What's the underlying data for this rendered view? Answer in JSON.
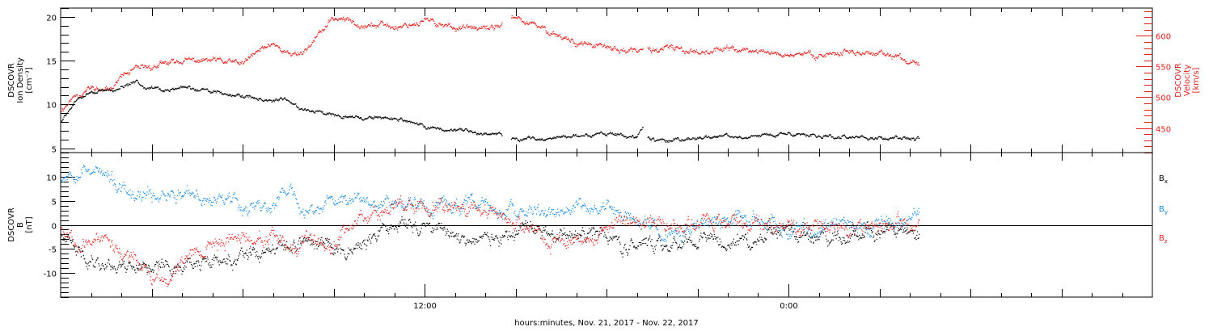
{
  "x_axis": {
    "title": "hours:minutes, Nov. 21, 2017 - Nov. 22, 2017",
    "range_hours": [
      0,
      36
    ],
    "tick_hours": [
      12,
      24
    ],
    "tick_labels": [
      "12:00",
      "0:00"
    ]
  },
  "chart_data": [
    {
      "type": "scatter",
      "panel": "plasma",
      "ylabel_left": [
        "DSCOVR",
        "Ion Density",
        "[cm⁻³]"
      ],
      "ylabel_right": [
        "DSCOVR",
        "Velocity",
        "[km/s]"
      ],
      "ylim_left": [
        4.5,
        21
      ],
      "ylim_right": [
        410,
        645
      ],
      "yticks_left": [
        5,
        10,
        15,
        20
      ],
      "yticks_right": [
        450,
        500,
        550,
        600
      ],
      "data_end_hour": 28.3,
      "gaps": [
        [
          14.55,
          14.85
        ],
        [
          19.2,
          19.35
        ]
      ],
      "series": [
        {
          "label": "Ion Density",
          "axis": "left",
          "color": "#000000",
          "x": [
            0,
            0.5,
            1,
            1.5,
            2,
            2.5,
            3,
            3.5,
            4,
            5,
            6,
            7,
            7.5,
            8,
            9,
            10,
            11,
            12,
            13,
            14,
            14.55,
            14.85,
            16,
            17,
            18,
            19,
            19.2,
            19.35,
            20,
            21,
            22,
            23,
            24,
            25,
            26,
            27,
            28,
            28.3
          ],
          "y": [
            8,
            10.5,
            11.5,
            11.5,
            12,
            12.5,
            12,
            11.5,
            12,
            11.5,
            11,
            10.5,
            10.5,
            9.5,
            9,
            8.5,
            8.5,
            7.5,
            7,
            6.8,
            6.7,
            6.2,
            6.1,
            6.5,
            6.7,
            6.2,
            7.5,
            6.2,
            5.8,
            6.2,
            6.4,
            6.5,
            6.6,
            6.5,
            6.3,
            6.3,
            6.2,
            6.2
          ]
        },
        {
          "label": "Velocity",
          "axis": "right",
          "color": "#e0201b",
          "x": [
            0,
            0.5,
            1,
            1.5,
            2,
            2.5,
            3,
            3.5,
            4,
            5,
            6,
            6.5,
            7,
            7.5,
            8,
            9,
            9.5,
            10,
            11,
            12,
            13,
            14,
            14.55,
            14.85,
            16,
            17,
            18,
            19,
            20,
            21,
            22,
            23,
            24,
            25,
            26,
            27,
            28,
            28.3
          ],
          "y": [
            480,
            505,
            515,
            510,
            535,
            545,
            550,
            555,
            560,
            560,
            555,
            575,
            590,
            570,
            575,
            630,
            625,
            620,
            615,
            625,
            615,
            610,
            620,
            630,
            610,
            590,
            580,
            575,
            580,
            575,
            580,
            575,
            570,
            570,
            575,
            570,
            560,
            560
          ]
        }
      ]
    },
    {
      "type": "scatter",
      "panel": "magnetic-field",
      "ylabel_left": [
        "DSCOVR",
        "B",
        "[nT]"
      ],
      "ylim": [
        -15,
        15
      ],
      "yticks": [
        -10,
        -5,
        0,
        5,
        10
      ],
      "zero_line": true,
      "data_end_hour": 28.3,
      "series": [
        {
          "label": "Bx",
          "label_base": "B",
          "label_sub": "x",
          "color": "#000000",
          "x": [
            0,
            0.5,
            1,
            1.5,
            2,
            3,
            3.5,
            4,
            5,
            6,
            7,
            8,
            9,
            10,
            11,
            12,
            13,
            14,
            15,
            16,
            17,
            18,
            18.5,
            19,
            20,
            21,
            22,
            23,
            24,
            25,
            26,
            27,
            28,
            28.3
          ],
          "y": [
            -2,
            -6,
            -7,
            -8,
            -8,
            -8,
            -9,
            -8,
            -8,
            -7,
            -6,
            -3,
            -5,
            -4,
            0,
            0,
            -2,
            -3,
            -2,
            -2,
            -3,
            -1,
            -5,
            -4,
            -4,
            -3,
            -3,
            -3,
            -2,
            -3,
            -2,
            -2,
            -1.5,
            -2.5
          ]
        },
        {
          "label": "By",
          "label_base": "B",
          "label_sub": "y",
          "color": "#1589e0",
          "x": [
            0,
            0.5,
            1,
            1.5,
            2,
            2.5,
            3,
            3.5,
            4,
            5,
            5.5,
            6,
            7,
            7.5,
            8,
            9,
            10,
            11,
            12,
            13,
            14,
            15,
            16,
            17,
            18,
            19,
            20,
            21,
            22,
            23,
            24,
            25,
            26,
            27,
            28,
            28.3
          ],
          "y": [
            10,
            12,
            12,
            10,
            7,
            5,
            6,
            7,
            6,
            5,
            7,
            4,
            4,
            8,
            2,
            5,
            6,
            5,
            4,
            4,
            4,
            2,
            3,
            3,
            4,
            0,
            -2,
            0,
            1,
            2,
            -1,
            -1,
            0,
            0,
            2,
            3
          ]
        },
        {
          "label": "Bz",
          "label_base": "B",
          "label_sub": "z",
          "color": "#e0201b",
          "x": [
            0,
            0.5,
            1,
            1.5,
            2,
            2.5,
            3,
            3.5,
            4,
            4.5,
            5,
            6,
            7,
            7.5,
            8,
            9,
            10,
            11,
            12,
            13,
            14,
            15,
            16,
            17,
            18,
            19,
            20,
            21,
            22,
            23,
            24,
            25,
            26,
            27,
            28,
            28.3
          ],
          "y": [
            0,
            -3,
            -4,
            -2,
            -6,
            -8,
            -11,
            -12,
            -6,
            -5,
            -4,
            -2,
            -3,
            -6,
            -4,
            -3,
            2,
            5,
            4,
            5,
            3,
            0,
            -3,
            -4,
            0,
            1,
            0,
            1,
            1,
            0,
            -1,
            0,
            -1,
            0,
            0,
            0
          ]
        }
      ]
    }
  ]
}
